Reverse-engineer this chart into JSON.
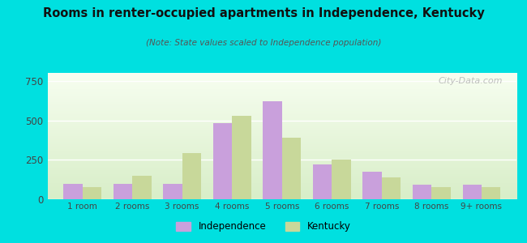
{
  "title": "Rooms in renter-occupied apartments in Independence, Kentucky",
  "subtitle": "(Note: State values scaled to Independence population)",
  "categories": [
    "1 room",
    "2 rooms",
    "3 rooms",
    "4 rooms",
    "5 rooms",
    "6 rooms",
    "7 rooms",
    "8 rooms",
    "9+ rooms"
  ],
  "independence_values": [
    100,
    100,
    100,
    480,
    620,
    220,
    175,
    90,
    90
  ],
  "kentucky_values": [
    75,
    150,
    290,
    530,
    390,
    250,
    140,
    75,
    75
  ],
  "independence_color": "#c9a0dc",
  "kentucky_color": "#c8d89a",
  "background_outer": "#00e0e0",
  "ylim": [
    0,
    800
  ],
  "yticks": [
    0,
    250,
    500,
    750
  ],
  "bar_width": 0.38,
  "legend_labels": [
    "Independence",
    "Kentucky"
  ],
  "watermark": "City-Data.com"
}
